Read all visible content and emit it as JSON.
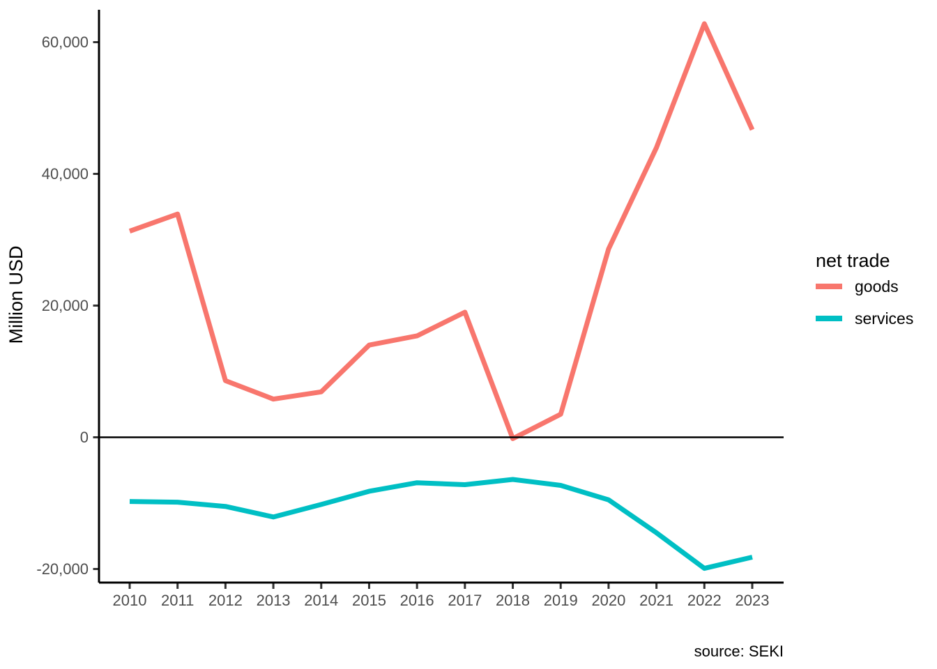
{
  "chart_data": {
    "type": "line",
    "title": "",
    "xlabel": "",
    "ylabel": "Million USD",
    "x": [
      2010,
      2011,
      2012,
      2013,
      2014,
      2015,
      2016,
      2017,
      2018,
      2019,
      2020,
      2021,
      2022,
      2023
    ],
    "series": [
      {
        "name": "goods",
        "color": "#F8766D",
        "values": [
          31300,
          33900,
          8600,
          5800,
          6900,
          14000,
          15400,
          19000,
          -200,
          3500,
          28600,
          44000,
          62800,
          46700
        ]
      },
      {
        "name": "services",
        "color": "#00BFC4",
        "values": [
          -9750,
          -9850,
          -10500,
          -12100,
          -10200,
          -8200,
          -6900,
          -7200,
          -6400,
          -7300,
          -9500,
          -14500,
          -19900,
          -18200
        ]
      }
    ],
    "ylim": [
      -22000,
      65000
    ],
    "yticks": [
      60000,
      40000,
      20000,
      0,
      -20000
    ],
    "ytick_labels": [
      "60,000",
      "40,000",
      "20,000",
      "0",
      "-20,000"
    ],
    "grid": false,
    "zero_line": true,
    "legend_position": "right"
  },
  "legend": {
    "title": "net trade",
    "items": [
      {
        "label": "goods",
        "color": "#F8766D"
      },
      {
        "label": "services",
        "color": "#00BFC4"
      }
    ]
  },
  "footer": {
    "source": "source: SEKI"
  },
  "colors": {
    "goods": "#F8766D",
    "services": "#00BFC4",
    "axis_text": "#4d4d4d",
    "axis_line": "#000000"
  }
}
